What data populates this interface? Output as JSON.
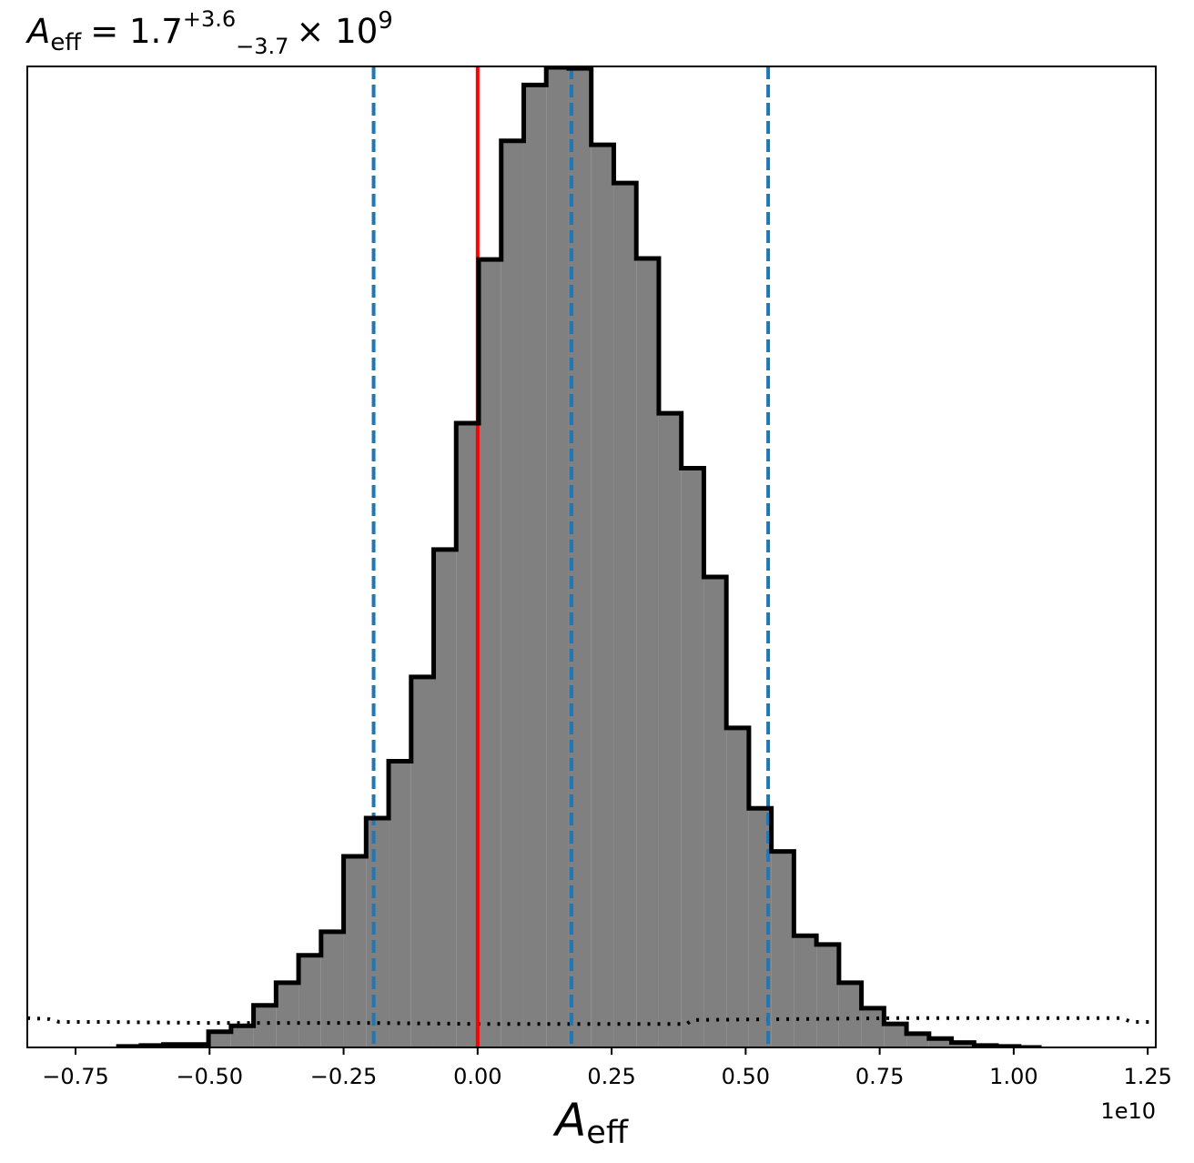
{
  "chart_data": {
    "type": "histogram",
    "title": {
      "symbol": "A",
      "subscript": "eff",
      "equals": "= 1.7",
      "upper": "+3.6",
      "lower": "−3.7",
      "multiplier": "× 10",
      "exponent": "9"
    },
    "xlabel": {
      "symbol": "A",
      "subscript": "eff"
    },
    "x_offset_label": "1e10",
    "x_unit_scale": 10000000000,
    "xlim": [
      -0.84,
      1.265
    ],
    "ylim": [
      0,
      1.0
    ],
    "y_ticks_shown": false,
    "x_ticks": [
      {
        "value": -0.75,
        "label": "−0.75"
      },
      {
        "value": -0.5,
        "label": "−0.50"
      },
      {
        "value": -0.25,
        "label": "−0.25"
      },
      {
        "value": 0.0,
        "label": "0.00"
      },
      {
        "value": 0.25,
        "label": "0.25"
      },
      {
        "value": 0.5,
        "label": "0.50"
      },
      {
        "value": 0.75,
        "label": "0.75"
      },
      {
        "value": 1.0,
        "label": "1.00"
      },
      {
        "value": 1.25,
        "label": "1.25"
      }
    ],
    "bin_edges": [
      -0.67,
      -0.628,
      -0.586,
      -0.544,
      -0.502,
      -0.46,
      -0.418,
      -0.376,
      -0.334,
      -0.292,
      -0.25,
      -0.208,
      -0.166,
      -0.124,
      -0.082,
      -0.04,
      0.002,
      0.044,
      0.086,
      0.128,
      0.17,
      0.212,
      0.254,
      0.296,
      0.338,
      0.38,
      0.422,
      0.464,
      0.506,
      0.548,
      0.59,
      0.632,
      0.674,
      0.716,
      0.758,
      0.8,
      0.842,
      0.884,
      0.926,
      0.968,
      1.01,
      1.052
    ],
    "bin_values": [
      0.001,
      0.002,
      0.003,
      0.003,
      0.016,
      0.022,
      0.043,
      0.066,
      0.094,
      0.118,
      0.195,
      0.234,
      0.292,
      0.378,
      0.508,
      0.637,
      0.804,
      0.925,
      0.982,
      1.0,
      0.999,
      0.921,
      0.882,
      0.805,
      0.647,
      0.591,
      0.48,
      0.326,
      0.244,
      0.2,
      0.114,
      0.105,
      0.066,
      0.04,
      0.024,
      0.014,
      0.009,
      0.005,
      0.002,
      0.001,
      0.0
    ],
    "fill_color": "#808080",
    "edge_color": "#000000",
    "dotted_curve": {
      "style": "dotted",
      "color": "#000000",
      "points": [
        [
          -0.84,
          0.03
        ],
        [
          -0.8,
          0.029
        ],
        [
          -0.78,
          0.026
        ],
        [
          -0.7,
          0.026
        ],
        [
          -0.5,
          0.025
        ],
        [
          -0.2,
          0.025
        ],
        [
          0.0,
          0.024
        ],
        [
          0.2,
          0.024
        ],
        [
          0.39,
          0.024
        ],
        [
          0.4,
          0.028
        ],
        [
          0.6,
          0.029
        ],
        [
          0.8,
          0.03
        ],
        [
          1.0,
          0.03
        ],
        [
          1.2,
          0.03
        ],
        [
          1.22,
          0.026
        ],
        [
          1.265,
          0.026
        ]
      ]
    },
    "vlines": [
      {
        "x": 0.0,
        "color": "#ff0000",
        "style": "solid"
      },
      {
        "x": -0.194,
        "color": "#1f77b4",
        "style": "dashed"
      },
      {
        "x": 0.175,
        "color": "#1f77b4",
        "style": "dashed"
      },
      {
        "x": 0.542,
        "color": "#1f77b4",
        "style": "dashed"
      }
    ]
  }
}
